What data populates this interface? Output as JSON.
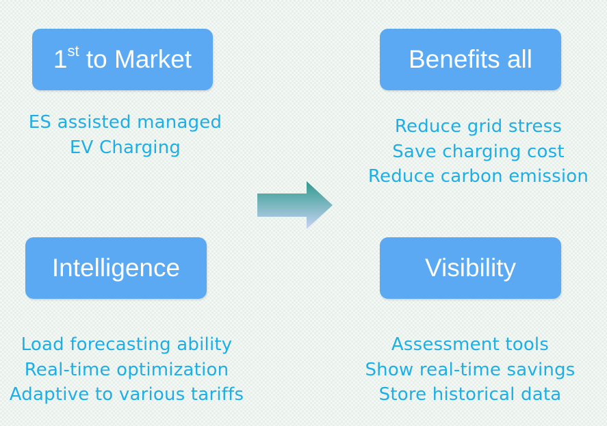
{
  "boxes": {
    "top_left": {
      "label_prefix": "1",
      "label_sup": "st",
      "label_rest": " to Market"
    },
    "top_right": {
      "label": "Benefits all"
    },
    "bottom_left": {
      "label": "Intelligence"
    },
    "bottom_right": {
      "label": "Visibility"
    }
  },
  "descriptions": {
    "top_left": [
      "ES assisted managed",
      "EV Charging"
    ],
    "top_right": [
      "Reduce grid stress",
      "Save charging cost",
      "Reduce carbon emission"
    ],
    "bottom_left": [
      "Load forecasting ability",
      "Real-time optimization",
      "Adaptive to various tariffs"
    ],
    "bottom_right": [
      "Assessment tools",
      "Show real-time savings",
      "Store historical data"
    ]
  },
  "colors": {
    "box_fill": "#5aa9f2",
    "box_text": "#ffffff",
    "desc_text": "#1eaee6",
    "arrow_top": "#2e9a8c",
    "arrow_bottom": "#c9d3f4"
  },
  "icons": {
    "center": "right-arrow-icon"
  }
}
